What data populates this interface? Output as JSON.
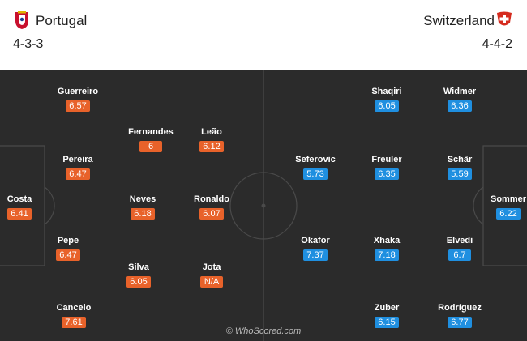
{
  "home": {
    "team": "Portugal",
    "formation": "4-3-3",
    "crest_icon": "portugal-crest-icon",
    "accent": "#e8622a",
    "players": [
      {
        "name": "Guerreiro",
        "rating": "6.57"
      },
      {
        "name": "Fernandes",
        "rating": "6"
      },
      {
        "name": "Leão",
        "rating": "6.12"
      },
      {
        "name": "Pereira",
        "rating": "6.47"
      },
      {
        "name": "Costa",
        "rating": "6.41"
      },
      {
        "name": "Neves",
        "rating": "6.18"
      },
      {
        "name": "Ronaldo",
        "rating": "6.07"
      },
      {
        "name": "Pepe",
        "rating": "6.47"
      },
      {
        "name": "Silva",
        "rating": "6.05"
      },
      {
        "name": "Jota",
        "rating": "N/A"
      },
      {
        "name": "Cancelo",
        "rating": "7.61"
      }
    ]
  },
  "away": {
    "team": "Switzerland",
    "formation": "4-4-2",
    "crest_icon": "switzerland-crest-icon",
    "accent": "#1f8fe0",
    "players": [
      {
        "name": "Shaqiri",
        "rating": "6.05"
      },
      {
        "name": "Widmer",
        "rating": "6.36"
      },
      {
        "name": "Seferovic",
        "rating": "5.73"
      },
      {
        "name": "Freuler",
        "rating": "6.35"
      },
      {
        "name": "Schär",
        "rating": "5.59"
      },
      {
        "name": "Sommer",
        "rating": "6.22"
      },
      {
        "name": "Okafor",
        "rating": "7.37"
      },
      {
        "name": "Xhaka",
        "rating": "7.18"
      },
      {
        "name": "Elvedi",
        "rating": "6.7"
      },
      {
        "name": "Zuber",
        "rating": "6.15"
      },
      {
        "name": "Rodríguez",
        "rating": "6.77"
      }
    ]
  },
  "footer": {
    "watermark": "© WhoScored.com"
  }
}
